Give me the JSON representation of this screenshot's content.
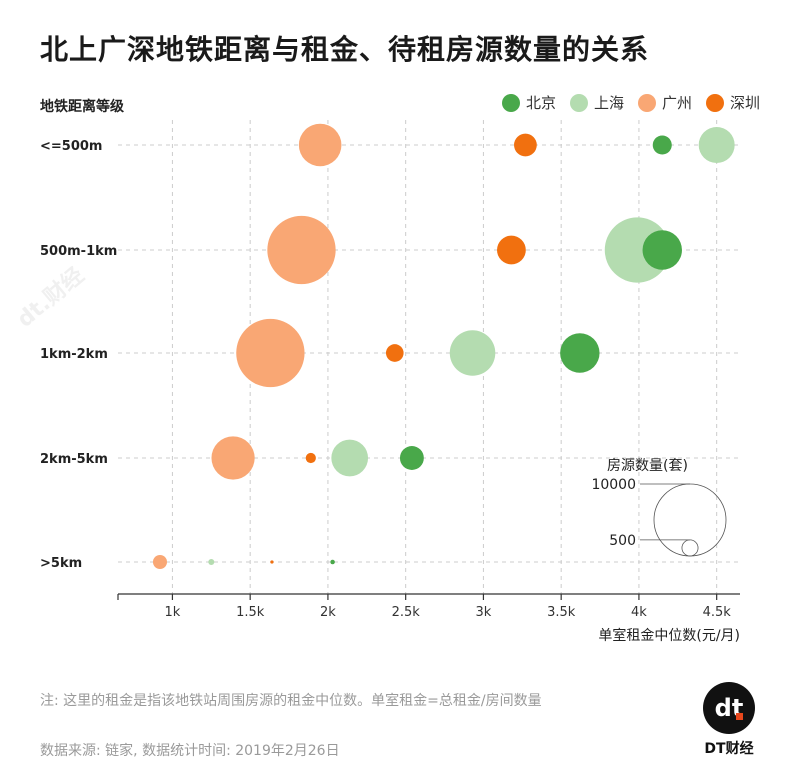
{
  "title": "北上广深地铁距离与租金、待租房源数量的关系",
  "note": "注: 这里的租金是指该地铁站周围房源的租金中位数。单室租金=总租金/房间数量",
  "source": "数据来源: 链家, 数据统计时间: 2019年2月26日",
  "brand": {
    "name": "DT财经",
    "logo_text": "dt"
  },
  "watermark_text": "dt.财经",
  "colors": {
    "beijing": "#49a84a",
    "shanghai": "#b4dcb0",
    "guangzhou": "#f9a774",
    "shenzhen": "#f1700f",
    "grid": "#cccccc",
    "axis": "#333333"
  },
  "chart_data": {
    "type": "scatter",
    "subtype": "bubble",
    "title": "北上广深地铁距离与租金、待租房源数量的关系",
    "ylabel": "地铁距离等级",
    "xlabel": "单室租金中位数(元/月)",
    "x_ticks": [
      1000,
      1500,
      2000,
      2500,
      3000,
      3500,
      4000,
      4500
    ],
    "x_tick_labels": [
      "1k",
      "1.5k",
      "2k",
      "2.5k",
      "3k",
      "3.5k",
      "4k",
      "4.5k"
    ],
    "xlim": [
      650,
      4650
    ],
    "categories": [
      "<=500m",
      "500m-1km",
      "1km-2km",
      "2km-5km",
      ">5km"
    ],
    "category_labels": [
      "<=500m",
      "500m-1km",
      "1km-2km",
      "2km-5km",
      ">5km"
    ],
    "size_legend": {
      "title": "房源数量(套)",
      "values": [
        10000,
        500
      ],
      "labels": [
        "10000",
        "500"
      ]
    },
    "series": [
      {
        "name": "北京",
        "key": "beijing",
        "values": [
          {
            "category": "<=500m",
            "x": 4150,
            "count": 700
          },
          {
            "category": "500m-1km",
            "x": 4150,
            "count": 3000
          },
          {
            "category": "1km-2km",
            "x": 3620,
            "count": 3000
          },
          {
            "category": "2km-5km",
            "x": 2540,
            "count": 1100
          },
          {
            "category": ">5km",
            "x": 2030,
            "count": 40
          }
        ]
      },
      {
        "name": "上海",
        "key": "shanghai",
        "values": [
          {
            "category": "<=500m",
            "x": 4500,
            "count": 2500
          },
          {
            "category": "500m-1km",
            "x": 3990,
            "count": 8200
          },
          {
            "category": "1km-2km",
            "x": 2930,
            "count": 4000
          },
          {
            "category": "2km-5km",
            "x": 2140,
            "count": 2600
          },
          {
            "category": ">5km",
            "x": 1250,
            "count": 70
          }
        ]
      },
      {
        "name": "广州",
        "key": "guangzhou",
        "values": [
          {
            "category": "<=500m",
            "x": 1950,
            "count": 3500
          },
          {
            "category": "500m-1km",
            "x": 1830,
            "count": 9000
          },
          {
            "category": "1km-2km",
            "x": 1630,
            "count": 9000
          },
          {
            "category": "2km-5km",
            "x": 1390,
            "count": 3600
          },
          {
            "category": ">5km",
            "x": 920,
            "count": 380
          }
        ]
      },
      {
        "name": "深圳",
        "key": "shenzhen",
        "values": [
          {
            "category": "<=500m",
            "x": 3270,
            "count": 1000
          },
          {
            "category": "500m-1km",
            "x": 3180,
            "count": 1600
          },
          {
            "category": "1km-2km",
            "x": 2430,
            "count": 600
          },
          {
            "category": "2km-5km",
            "x": 1890,
            "count": 200
          },
          {
            "category": ">5km",
            "x": 1640,
            "count": 15
          }
        ]
      }
    ]
  }
}
